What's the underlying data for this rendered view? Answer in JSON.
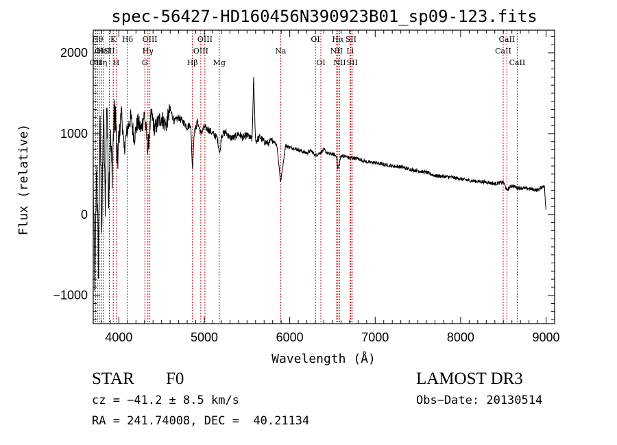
{
  "chart_data": {
    "type": "line",
    "title": "spec-56427-HD160456N390923B01_sp09-123.fits",
    "xlabel": "Wavelength (Å)",
    "ylabel": "Flux (relative)",
    "xlim": [
      3700,
      9100
    ],
    "ylim": [
      -1350,
      2280
    ],
    "xticks": [
      4000,
      5000,
      6000,
      7000,
      8000,
      9000
    ],
    "xtick_labels": [
      "4000",
      "5000",
      "6000",
      "7000",
      "8000",
      "9000"
    ],
    "yticks": [
      -1000,
      0,
      1000,
      2000
    ],
    "ytick_labels": [
      "−1000",
      "0",
      "1000",
      "2000"
    ],
    "grid": false,
    "series": [
      {
        "name": "spectrum",
        "x": [
          3700,
          3720,
          3740,
          3760,
          3780,
          3800,
          3820,
          3840,
          3860,
          3880,
          3900,
          3920,
          3940,
          3960,
          3980,
          4000,
          4030,
          4060,
          4100,
          4140,
          4180,
          4220,
          4260,
          4300,
          4340,
          4380,
          4420,
          4460,
          4500,
          4550,
          4600,
          4650,
          4700,
          4750,
          4800,
          4840,
          4862,
          4880,
          4920,
          4960,
          5000,
          5050,
          5100,
          5150,
          5184,
          5200,
          5250,
          5300,
          5350,
          5400,
          5450,
          5500,
          5560,
          5577,
          5600,
          5650,
          5700,
          5750,
          5800,
          5850,
          5893,
          5950,
          6000,
          6050,
          6100,
          6150,
          6200,
          6250,
          6300,
          6350,
          6400,
          6450,
          6500,
          6550,
          6563,
          6600,
          6650,
          6700,
          6750,
          6800,
          6900,
          7000,
          7100,
          7200,
          7300,
          7400,
          7500,
          7600,
          7700,
          7800,
          7900,
          8000,
          8100,
          8200,
          8300,
          8400,
          8500,
          8542,
          8600,
          8662,
          8700,
          8800,
          8900,
          8980,
          9000
        ],
        "y": [
          300,
          -900,
          700,
          -600,
          1100,
          -200,
          1300,
          100,
          1500,
          200,
          1000,
          500,
          1100,
          1300,
          600,
          900,
          1300,
          800,
          1050,
          1200,
          950,
          1150,
          1050,
          1250,
          800,
          1250,
          1050,
          1150,
          1200,
          1100,
          1300,
          1150,
          1200,
          1150,
          1080,
          1120,
          550,
          1000,
          1150,
          1000,
          1080,
          1050,
          1000,
          950,
          750,
          980,
          1020,
          950,
          950,
          1000,
          950,
          980,
          930,
          1700,
          900,
          960,
          900,
          880,
          920,
          860,
          400,
          850,
          830,
          820,
          800,
          780,
          760,
          790,
          730,
          760,
          800,
          750,
          750,
          720,
          550,
          730,
          720,
          700,
          700,
          690,
          650,
          640,
          620,
          600,
          590,
          560,
          540,
          520,
          480,
          470,
          460,
          440,
          420,
          410,
          400,
          380,
          400,
          300,
          360,
          330,
          330,
          320,
          300,
          360,
          10
        ]
      }
    ],
    "lines": [
      {
        "wl": 3727,
        "label": "OII",
        "row": 2
      },
      {
        "wl": 3750,
        "label": "Hθ",
        "row": 0
      },
      {
        "wl": 3771,
        "label": "OI",
        "row": 1
      },
      {
        "wl": 3798,
        "label": "Hη",
        "row": 2
      },
      {
        "wl": 3820,
        "label": "HeI",
        "row": 1
      },
      {
        "wl": 3889,
        "label": "SII",
        "row": 1
      },
      {
        "wl": 3934,
        "label": "K",
        "row": 0
      },
      {
        "wl": 3969,
        "label": "H",
        "row": 2
      },
      {
        "wl": 4101,
        "label": "Hδ",
        "row": 0
      },
      {
        "wl": 4304,
        "label": "G",
        "row": 2
      },
      {
        "wl": 4340,
        "label": "Hγ",
        "row": 1
      },
      {
        "wl": 4363,
        "label": "OIII",
        "row": 0
      },
      {
        "wl": 4861,
        "label": "Hβ",
        "row": 2
      },
      {
        "wl": 4959,
        "label": "OIII",
        "row": 1
      },
      {
        "wl": 5007,
        "label": "OIII",
        "row": 0
      },
      {
        "wl": 5175,
        "label": "Mg",
        "row": 2
      },
      {
        "wl": 5893,
        "label": "Na",
        "row": 1
      },
      {
        "wl": 6300,
        "label": "OI",
        "row": 0
      },
      {
        "wl": 6364,
        "label": "OI",
        "row": 2
      },
      {
        "wl": 6548,
        "label": "NII",
        "row": 1
      },
      {
        "wl": 6563,
        "label": "Hα",
        "row": 0
      },
      {
        "wl": 6584,
        "label": "NII",
        "row": 2
      },
      {
        "wl": 6707,
        "label": "Li",
        "row": 1
      },
      {
        "wl": 6716,
        "label": "SII",
        "row": 0
      },
      {
        "wl": 6731,
        "label": "SII",
        "row": 2
      },
      {
        "wl": 8498,
        "label": "CaII",
        "row": 1
      },
      {
        "wl": 8542,
        "label": "CaII",
        "row": 0
      },
      {
        "wl": 8662,
        "label": "CaII",
        "row": 2
      }
    ]
  },
  "info": {
    "object_class": "STAR",
    "subclass": "F0",
    "survey": "LAMOST DR3",
    "redshift": "cz = −41.2 ± 8.5 km/s",
    "obs_date": "Obs−Date: 20130514",
    "coords": "RA = 241.74008, DEC =  40.21134"
  },
  "colors": {
    "axis": "#000000",
    "spectrum": "#000000",
    "line_marker": "#cc0000"
  }
}
